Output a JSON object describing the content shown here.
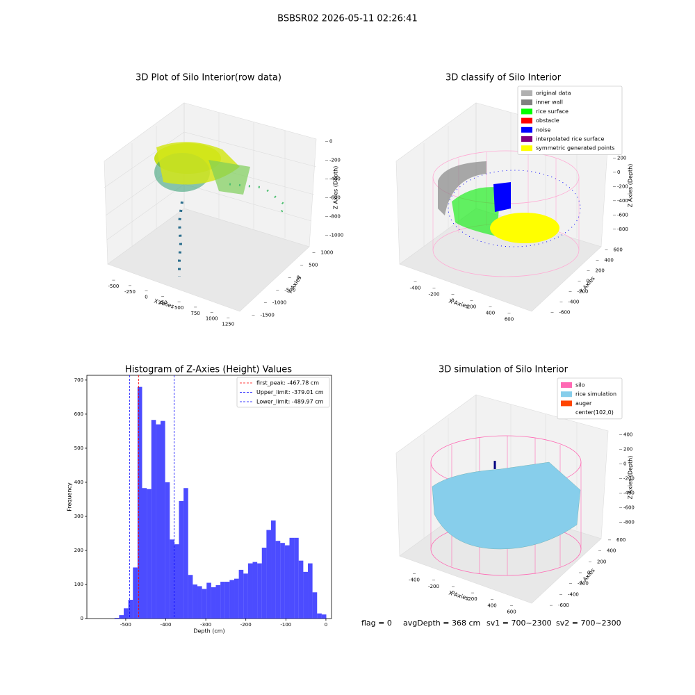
{
  "title": "BSBSR02 2026-05-11 02:26:41",
  "chart_data": [
    {
      "type": "scatter3d",
      "title": "3D Plot of Silo Interior(row data)",
      "xlabel": "X Axies",
      "ylabel": "Y Axies",
      "zlabel": "Z Axies (Depth)",
      "xlim": [
        -600,
        1300
      ],
      "xticks": [
        -500,
        -250,
        0,
        250,
        500,
        750,
        1000,
        1250
      ],
      "ylim": [
        -1600,
        1100
      ],
      "yticks": [
        -1500,
        -1000,
        -500,
        0,
        500,
        1000
      ],
      "zlim": [
        -1050,
        50
      ],
      "zticks": [
        0,
        -200,
        -400,
        -600,
        -800,
        -1000
      ]
    },
    {
      "type": "scatter3d",
      "title": "3D classify of Silo Interior",
      "xlabel": "X Axies",
      "ylabel": "Y Axies",
      "zlabel": "Z Axies (Depth)",
      "xlim": [
        -500,
        700
      ],
      "xticks": [
        -400,
        -200,
        0,
        200,
        400,
        600
      ],
      "ylim": [
        -700,
        700
      ],
      "yticks": [
        -600,
        -400,
        -200,
        0,
        200,
        400,
        600
      ],
      "zlim": [
        -900,
        350
      ],
      "zticks": [
        200,
        0,
        -200,
        -400,
        -600,
        -800
      ],
      "legend": [
        {
          "name": "original data",
          "color": "#b0b0b0"
        },
        {
          "name": "inner wall",
          "color": "#808080"
        },
        {
          "name": "rice surface",
          "color": "#00ff00"
        },
        {
          "name": "obstacle",
          "color": "#ff0000"
        },
        {
          "name": "noise",
          "color": "#0000ff"
        },
        {
          "name": "interpolated rice surface",
          "color": "#800080"
        },
        {
          "name": "symmetric generated points",
          "color": "#ffff00"
        }
      ]
    },
    {
      "type": "histogram",
      "title": "Histogram of Z-Axies (Height) Values",
      "xlabel": "Depth (cm)",
      "ylabel": "Frequency",
      "color": "#0000ff",
      "alpha": 0.7,
      "bins": [
        -528,
        -516.5,
        -505,
        -493.5,
        -482,
        -470.5,
        -459,
        -447.5,
        -436,
        -424.5,
        -413,
        -401.5,
        -390,
        -378.5,
        -367,
        -355.5,
        -344,
        -332.5,
        -321,
        -309.5,
        -298,
        -286.5,
        -275,
        -263.5,
        -252,
        -240.5,
        -229,
        -217.5,
        -206,
        -194.5,
        -183,
        -171.5,
        -160,
        -148.5,
        -137,
        -125.5,
        -114,
        -102.5,
        -91,
        -79.5,
        -68,
        -56.5,
        -45,
        -33.5,
        -22,
        -10.5,
        1
      ],
      "counts": [
        2,
        10,
        30,
        55,
        150,
        680,
        383,
        380,
        583,
        570,
        580,
        400,
        232,
        218,
        345,
        383,
        128,
        100,
        95,
        87,
        105,
        92,
        98,
        108,
        108,
        113,
        117,
        143,
        132,
        162,
        166,
        162,
        208,
        260,
        288,
        228,
        222,
        215,
        237,
        237,
        170,
        137,
        162,
        77,
        15,
        12
      ],
      "xlim": [
        -597,
        14
      ],
      "xticks": [
        -500,
        -400,
        -300,
        -200,
        -100,
        0
      ],
      "ylim": [
        0,
        714
      ],
      "yticks": [
        0,
        100,
        200,
        300,
        400,
        500,
        600,
        700
      ],
      "vlines": [
        {
          "name": "first_peak: -467.78 cm",
          "value": -467.78,
          "color": "#ff0000"
        },
        {
          "name": "Upper_limit: -379.01 cm",
          "value": -379.01,
          "color": "#0000ff"
        },
        {
          "name": "Lower_limit: -489.97 cm",
          "value": -489.97,
          "color": "#0000ff"
        }
      ]
    },
    {
      "type": "surface3d",
      "title": "3D simulation of Silo Interior",
      "xlabel": "X Axies",
      "ylabel": "Y Axies",
      "zlabel": "Z Axies (Depth)",
      "xlim": [
        -500,
        700
      ],
      "xticks": [
        -400,
        -200,
        0,
        200,
        400,
        600
      ],
      "ylim": [
        -700,
        700
      ],
      "yticks": [
        -600,
        -400,
        -200,
        0,
        200,
        400,
        600
      ],
      "zlim": [
        -900,
        500
      ],
      "zticks": [
        400,
        200,
        0,
        -200,
        -400,
        -600,
        -800
      ],
      "legend": [
        {
          "name": "silo",
          "color": "#ff69b4"
        },
        {
          "name": "rice simulation",
          "color": "#87ceeb"
        },
        {
          "name": "auger",
          "color": "#ff4500"
        },
        {
          "name": "center(102,0)",
          "color": "#ffffff"
        }
      ]
    }
  ],
  "footer": [
    "flag = 0",
    "avgDepth = 368 cm",
    "sv1 = 700~2300",
    "sv2 = 700~2300"
  ]
}
